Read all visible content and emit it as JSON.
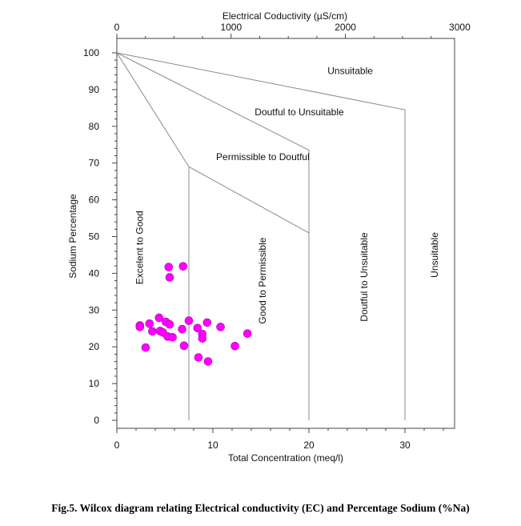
{
  "chart_data": {
    "type": "scatter",
    "title": "",
    "xlabel": "Total Concentration (meq/l)",
    "ylabel": "Sodium Percentage",
    "top_xlabel": "Electrical Coductivity (µS/cm)",
    "xlim": [
      0,
      35
    ],
    "ylim": [
      0,
      100
    ],
    "x_ticks": [
      "0",
      "10",
      "20",
      "30"
    ],
    "y_ticks": [
      "0",
      "10",
      "20",
      "30",
      "40",
      "50",
      "60",
      "70",
      "80",
      "90",
      "100"
    ],
    "top_ticks": [
      {
        "label": "0",
        "value": 0
      },
      {
        "label": "1000",
        "value": 1000
      },
      {
        "label": "2000",
        "value": 2000
      },
      {
        "label": "3000",
        "value": 3000
      }
    ],
    "boundaries": [
      {
        "name": "excellent-good",
        "points": [
          [
            0,
            100
          ],
          [
            7.5,
            69
          ],
          [
            7.5,
            0
          ]
        ]
      },
      {
        "name": "good-doubtful",
        "points": [
          [
            0,
            100
          ],
          [
            20,
            73.5
          ],
          [
            20,
            0
          ]
        ]
      },
      {
        "name": "doubtful-unsuitable",
        "points": [
          [
            0,
            100
          ],
          [
            30,
            84.5
          ],
          [
            30,
            0
          ]
        ]
      },
      {
        "name": "permissible-doubtful",
        "points": [
          [
            7.5,
            69
          ],
          [
            20,
            51
          ]
        ]
      }
    ],
    "regions": [
      {
        "name": "unsuitable-top",
        "label": "Unsuitable",
        "x": 24.3,
        "y": 94.2,
        "rotate": 0
      },
      {
        "name": "doubtful-to-unsuitable-top",
        "label": "Doutful to Unsuitable",
        "x": 19,
        "y": 83,
        "rotate": 0
      },
      {
        "name": "permissible-to-doubtful",
        "label": "Permissible to Doutful",
        "x": 15.2,
        "y": 70.8,
        "rotate": 0
      },
      {
        "name": "excellent-to-good",
        "label": "Excelent to Good",
        "x": 2.7,
        "y": 47,
        "rotate": -90
      },
      {
        "name": "good-to-permissible",
        "label": "Good to Permissible",
        "x": 15.5,
        "y": 38,
        "rotate": -90
      },
      {
        "name": "doubtful-to-unsuitable-right",
        "label": "Doutful to Unsuitable",
        "x": 26.1,
        "y": 39,
        "rotate": -90
      },
      {
        "name": "unsuitable-right",
        "label": "Unsuitable",
        "x": 33.4,
        "y": 45,
        "rotate": -90
      }
    ],
    "series": [
      {
        "marker_color": "#ff00ff",
        "points": [
          [
            5.4,
            41.7
          ],
          [
            6.9,
            41.9
          ],
          [
            5.5,
            38.9
          ],
          [
            2.4,
            25.8
          ],
          [
            2.4,
            25.4
          ],
          [
            3.4,
            26.3
          ],
          [
            3.7,
            24.2
          ],
          [
            4.4,
            27.9
          ],
          [
            4.5,
            24.3
          ],
          [
            4.8,
            23.9
          ],
          [
            5.1,
            26.8
          ],
          [
            5.3,
            22.8
          ],
          [
            5.5,
            26.1
          ],
          [
            5.8,
            22.6
          ],
          [
            6.8,
            24.8
          ],
          [
            7.0,
            20.3
          ],
          [
            7.5,
            27.1
          ],
          [
            8.4,
            25.1
          ],
          [
            8.9,
            23.5
          ],
          [
            8.9,
            22.3
          ],
          [
            9.4,
            26.6
          ],
          [
            10.8,
            25.4
          ],
          [
            12.3,
            20.2
          ],
          [
            13.6,
            23.6
          ],
          [
            3.0,
            19.8
          ],
          [
            8.5,
            17.1
          ],
          [
            9.5,
            16.0
          ]
        ]
      }
    ],
    "grid": false,
    "legend": "none"
  },
  "caption": "Fig.5. Wilcox diagram relating Electrical conductivity (EC) and Percentage Sodium (%Na)"
}
